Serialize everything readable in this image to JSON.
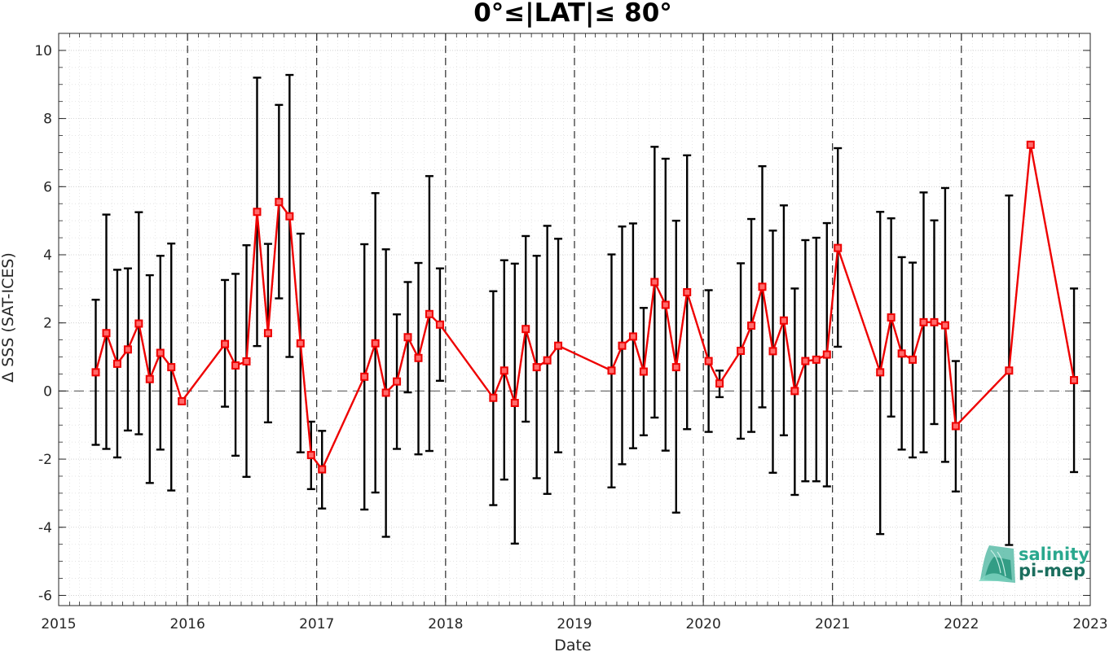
{
  "chart_data": {
    "type": "line",
    "title": "0°≤|LAT|≤ 80°",
    "xlabel": "Date",
    "ylabel": "Δ SSS (SAT-ICES)",
    "xlim": [
      "2015-01-01",
      "2023-01-01"
    ],
    "ylim": [
      -6.3,
      10.5
    ],
    "x_ticks": [
      "2015",
      "2016",
      "2017",
      "2018",
      "2019",
      "2020",
      "2021",
      "2022",
      "2023"
    ],
    "y_ticks": [
      -6,
      -4,
      -2,
      0,
      2,
      4,
      6,
      8,
      10
    ],
    "grid": true,
    "year_boundaries": [
      "2016",
      "2017",
      "2018",
      "2019",
      "2020",
      "2021",
      "2022"
    ],
    "reference_line": 0,
    "colors": {
      "series": "#ee0000",
      "errorbars": "#000000",
      "reference": "#6e6e6e"
    },
    "series": [
      {
        "points": [
          {
            "x": "2015-04-16",
            "y": 0.55,
            "lo": -1.58,
            "hi": 2.68
          },
          {
            "x": "2015-05-16",
            "y": 1.7,
            "lo": -1.7,
            "hi": 5.18
          },
          {
            "x": "2015-06-16",
            "y": 0.8,
            "lo": -1.95,
            "hi": 3.56
          },
          {
            "x": "2015-07-16",
            "y": 1.22,
            "lo": -1.16,
            "hi": 3.6
          },
          {
            "x": "2015-08-16",
            "y": 1.98,
            "lo": -1.27,
            "hi": 5.25
          },
          {
            "x": "2015-09-16",
            "y": 0.35,
            "lo": -2.7,
            "hi": 3.4
          },
          {
            "x": "2015-10-16",
            "y": 1.12,
            "lo": -1.72,
            "hi": 3.97
          },
          {
            "x": "2015-11-16",
            "y": 0.7,
            "lo": -2.92,
            "hi": 4.33
          },
          {
            "x": "2015-12-16",
            "y": -0.3,
            "lo": -0.38,
            "hi": -0.22
          },
          {
            "x": "2016-04-16",
            "y": 1.38,
            "lo": -0.46,
            "hi": 3.26
          },
          {
            "x": "2016-05-16",
            "y": 0.75,
            "lo": -1.9,
            "hi": 3.44
          },
          {
            "x": "2016-06-16",
            "y": 0.87,
            "lo": -2.52,
            "hi": 4.28
          },
          {
            "x": "2016-07-16",
            "y": 5.26,
            "lo": 1.32,
            "hi": 9.2
          },
          {
            "x": "2016-08-16",
            "y": 1.7,
            "lo": -0.92,
            "hi": 4.32
          },
          {
            "x": "2016-09-16",
            "y": 5.55,
            "lo": 2.72,
            "hi": 8.4
          },
          {
            "x": "2016-10-16",
            "y": 5.13,
            "lo": 1.0,
            "hi": 9.28
          },
          {
            "x": "2016-11-16",
            "y": 1.4,
            "lo": -1.8,
            "hi": 4.62
          },
          {
            "x": "2016-12-16",
            "y": -1.88,
            "lo": -2.88,
            "hi": -0.9
          },
          {
            "x": "2017-01-16",
            "y": -2.3,
            "lo": -3.45,
            "hi": -1.17
          },
          {
            "x": "2017-05-16",
            "y": 0.42,
            "lo": -3.48,
            "hi": 4.31
          },
          {
            "x": "2017-06-16",
            "y": 1.4,
            "lo": -2.98,
            "hi": 5.81
          },
          {
            "x": "2017-07-16",
            "y": -0.05,
            "lo": -4.28,
            "hi": 4.16
          },
          {
            "x": "2017-08-16",
            "y": 0.28,
            "lo": -1.7,
            "hi": 2.25
          },
          {
            "x": "2017-09-16",
            "y": 1.58,
            "lo": -0.04,
            "hi": 3.2
          },
          {
            "x": "2017-10-16",
            "y": 0.97,
            "lo": -1.86,
            "hi": 3.76
          },
          {
            "x": "2017-11-16",
            "y": 2.26,
            "lo": -1.76,
            "hi": 6.31
          },
          {
            "x": "2017-12-16",
            "y": 1.95,
            "lo": 0.3,
            "hi": 3.6
          },
          {
            "x": "2018-05-16",
            "y": -0.2,
            "lo": -3.35,
            "hi": 2.93
          },
          {
            "x": "2018-06-16",
            "y": 0.6,
            "lo": -2.6,
            "hi": 3.84
          },
          {
            "x": "2018-07-16",
            "y": -0.35,
            "lo": -4.48,
            "hi": 3.74
          },
          {
            "x": "2018-08-16",
            "y": 1.82,
            "lo": -0.9,
            "hi": 4.55
          },
          {
            "x": "2018-09-16",
            "y": 0.7,
            "lo": -2.56,
            "hi": 3.97
          },
          {
            "x": "2018-10-16",
            "y": 0.9,
            "lo": -3.02,
            "hi": 4.85
          },
          {
            "x": "2018-11-16",
            "y": 1.33,
            "lo": -1.8,
            "hi": 4.47
          },
          {
            "x": "2019-04-16",
            "y": 0.6,
            "lo": -2.83,
            "hi": 4.01
          },
          {
            "x": "2019-05-16",
            "y": 1.33,
            "lo": -2.15,
            "hi": 4.83
          },
          {
            "x": "2019-06-16",
            "y": 1.6,
            "lo": -1.68,
            "hi": 4.92
          },
          {
            "x": "2019-07-16",
            "y": 0.57,
            "lo": -1.3,
            "hi": 2.44
          },
          {
            "x": "2019-08-16",
            "y": 3.2,
            "lo": -0.78,
            "hi": 7.17
          },
          {
            "x": "2019-09-16",
            "y": 2.53,
            "lo": -1.75,
            "hi": 6.82
          },
          {
            "x": "2019-10-16",
            "y": 0.7,
            "lo": -3.57,
            "hi": 5.0
          },
          {
            "x": "2019-11-16",
            "y": 2.9,
            "lo": -1.12,
            "hi": 6.92
          },
          {
            "x": "2020-01-16",
            "y": 0.88,
            "lo": -1.2,
            "hi": 2.96
          },
          {
            "x": "2020-02-16",
            "y": 0.22,
            "lo": -0.18,
            "hi": 0.6
          },
          {
            "x": "2020-04-16",
            "y": 1.18,
            "lo": -1.4,
            "hi": 3.75
          },
          {
            "x": "2020-05-16",
            "y": 1.92,
            "lo": -1.2,
            "hi": 5.05
          },
          {
            "x": "2020-06-16",
            "y": 3.06,
            "lo": -0.48,
            "hi": 6.6
          },
          {
            "x": "2020-07-16",
            "y": 1.17,
            "lo": -2.4,
            "hi": 4.71
          },
          {
            "x": "2020-08-16",
            "y": 2.07,
            "lo": -1.3,
            "hi": 5.45
          },
          {
            "x": "2020-09-16",
            "y": 0.0,
            "lo": -3.05,
            "hi": 3.01
          },
          {
            "x": "2020-10-16",
            "y": 0.88,
            "lo": -2.65,
            "hi": 4.43
          },
          {
            "x": "2020-11-16",
            "y": 0.92,
            "lo": -2.65,
            "hi": 4.5
          },
          {
            "x": "2020-12-16",
            "y": 1.07,
            "lo": -2.8,
            "hi": 4.93
          },
          {
            "x": "2021-01-16",
            "y": 4.2,
            "lo": 1.3,
            "hi": 7.13
          },
          {
            "x": "2021-05-16",
            "y": 0.55,
            "lo": -4.2,
            "hi": 5.26
          },
          {
            "x": "2021-06-16",
            "y": 2.16,
            "lo": -0.75,
            "hi": 5.07
          },
          {
            "x": "2021-07-16",
            "y": 1.1,
            "lo": -1.72,
            "hi": 3.93
          },
          {
            "x": "2021-08-16",
            "y": 0.92,
            "lo": -1.95,
            "hi": 3.77
          },
          {
            "x": "2021-09-16",
            "y": 2.02,
            "lo": -1.8,
            "hi": 5.83
          },
          {
            "x": "2021-10-16",
            "y": 2.02,
            "lo": -0.97,
            "hi": 5.01
          },
          {
            "x": "2021-11-16",
            "y": 1.93,
            "lo": -2.08,
            "hi": 5.96
          },
          {
            "x": "2021-12-16",
            "y": -1.03,
            "lo": -2.95,
            "hi": 0.88
          },
          {
            "x": "2022-05-16",
            "y": 0.6,
            "lo": -4.52,
            "hi": 5.74
          },
          {
            "x": "2022-07-16",
            "y": 7.23,
            "lo": 7.23,
            "hi": 7.23
          },
          {
            "x": "2022-11-16",
            "y": 0.32,
            "lo": -2.38,
            "hi": 3.01
          }
        ]
      }
    ]
  },
  "logo": {
    "line1": "salinity",
    "line2": "pi-mep"
  }
}
